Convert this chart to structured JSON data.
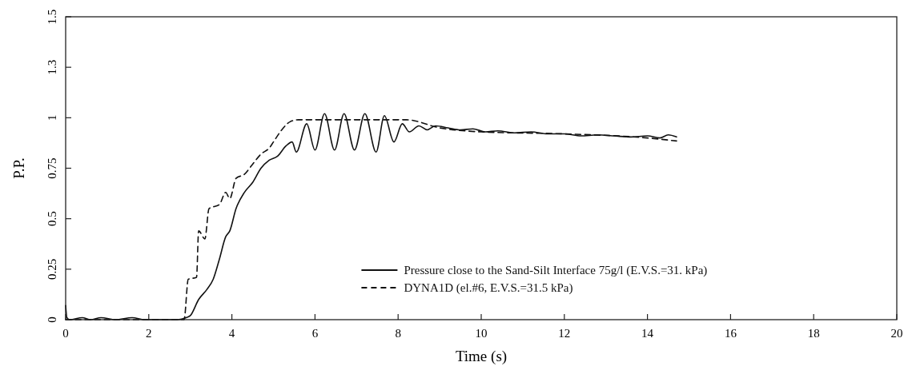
{
  "chart_data": {
    "type": "line",
    "xlabel": "Time (s)",
    "ylabel": "P.P.",
    "xlim": [
      0,
      20
    ],
    "xticks": [
      0,
      2,
      4,
      6,
      8,
      10,
      12,
      14,
      16,
      18,
      20
    ],
    "ylim": [
      0,
      1.5
    ],
    "yticks": [
      0,
      0.25,
      0.5,
      0.75,
      1,
      {
        "value": 1.25,
        "label": "1.3"
      },
      1.5
    ],
    "grid": false,
    "legend": "bottom right",
    "marker": "none",
    "series": [
      {
        "name": "Pressure close to the Sand-Silt Interface 75g/l (E.V.S.=31. kPa)",
        "color": "#111111",
        "line_style": "solid",
        "x": [
          0,
          0.03,
          0.1,
          0.4,
          0.6,
          0.85,
          1.2,
          1.6,
          1.9,
          2.1,
          2.4,
          2.7,
          2.9,
          3.0,
          3.2,
          3.4,
          3.55,
          3.7,
          3.85,
          3.95,
          4.1,
          4.3,
          4.5,
          4.7,
          4.9,
          5.1,
          5.3,
          5.45,
          5.55,
          5.8,
          6.0,
          6.23,
          6.47,
          6.7,
          6.95,
          7.2,
          7.47,
          7.67,
          7.9,
          8.1,
          8.27,
          8.5,
          8.7,
          8.9,
          9.2,
          9.5,
          9.8,
          10.1,
          10.4,
          10.8,
          11.2,
          11.6,
          12.0,
          12.4,
          12.8,
          13.2,
          13.6,
          14.0,
          14.3,
          14.5,
          14.7
        ],
        "values": [
          0.07,
          0.01,
          0,
          0.01,
          0,
          0.01,
          0,
          0.01,
          0,
          0,
          0,
          0,
          0.01,
          0.02,
          0.1,
          0.15,
          0.2,
          0.3,
          0.41,
          0.44,
          0.55,
          0.63,
          0.68,
          0.75,
          0.79,
          0.81,
          0.86,
          0.88,
          0.83,
          0.97,
          0.84,
          1.02,
          0.84,
          1.02,
          0.84,
          1.02,
          0.83,
          1.01,
          0.88,
          0.97,
          0.93,
          0.96,
          0.94,
          0.96,
          0.95,
          0.94,
          0.945,
          0.93,
          0.935,
          0.925,
          0.93,
          0.92,
          0.92,
          0.91,
          0.915,
          0.91,
          0.905,
          0.91,
          0.9,
          0.915,
          0.905
        ]
      },
      {
        "name": "DYNA1D (el.#6, E.V.S.=31.5 kPa)",
        "color": "#111111",
        "line_style": "dashed",
        "x": [
          0,
          2.85,
          2.95,
          3.15,
          3.2,
          3.35,
          3.45,
          3.7,
          3.85,
          3.95,
          4.1,
          4.3,
          4.5,
          4.7,
          4.9,
          5.0,
          5.2,
          5.4,
          5.6,
          8.2,
          9,
          10,
          12,
          14,
          14.7
        ],
        "values": [
          0,
          0,
          0.2,
          0.21,
          0.44,
          0.4,
          0.55,
          0.57,
          0.63,
          0.6,
          0.7,
          0.72,
          0.77,
          0.82,
          0.85,
          0.88,
          0.94,
          0.98,
          0.99,
          0.99,
          0.95,
          0.93,
          0.92,
          0.9,
          0.885
        ]
      }
    ]
  }
}
